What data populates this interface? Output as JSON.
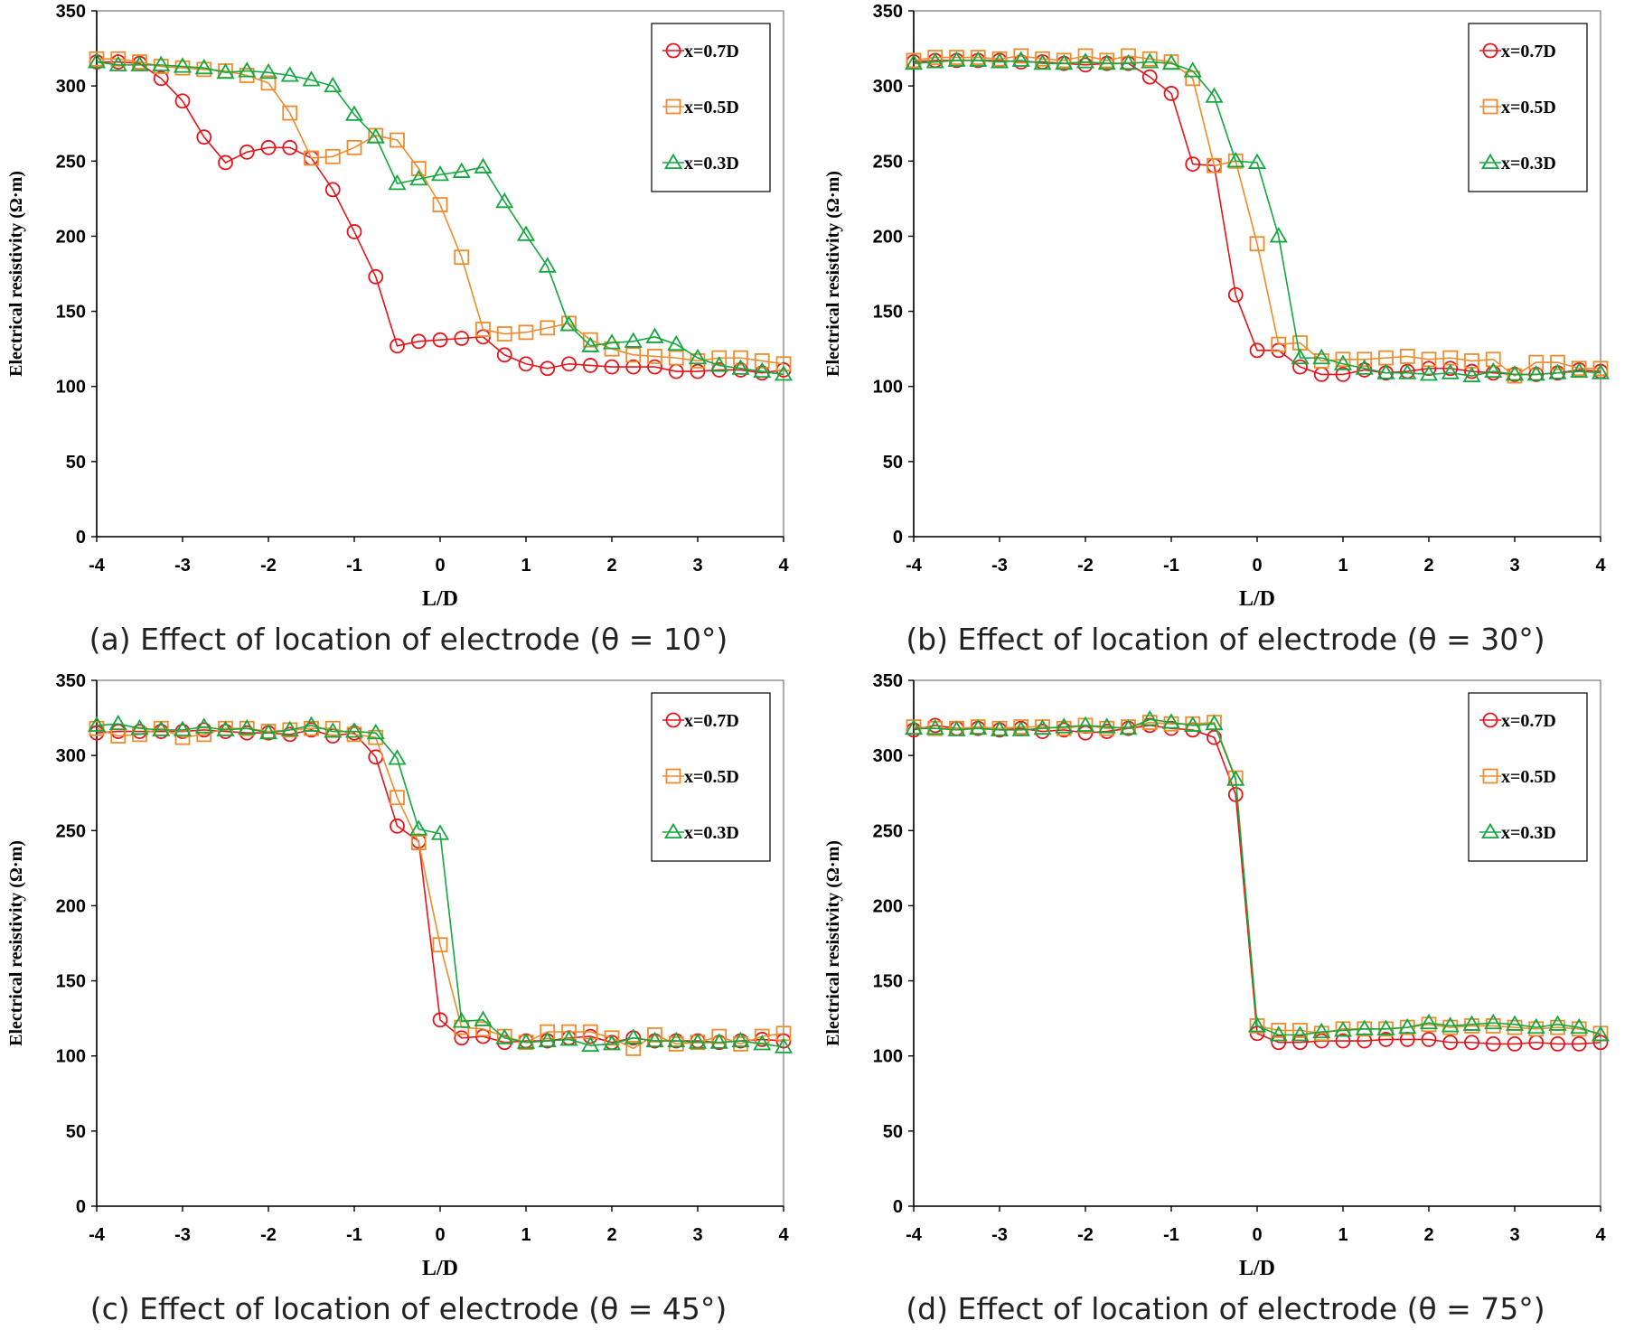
{
  "chart_data": [
    {
      "type": "line",
      "caption": "(a) Effect of location of electrode (θ = 10°)",
      "xlabel": "L/D",
      "ylabel": "Electrical resistivity (Ω·m)",
      "xlim": [
        -4,
        4
      ],
      "ylim": [
        0,
        350
      ],
      "xticks": [
        "-4",
        "-3",
        "-2",
        "-1",
        "0",
        "1",
        "2",
        "3",
        "4"
      ],
      "yticks": [
        "0",
        "50",
        "100",
        "150",
        "200",
        "250",
        "300",
        "350"
      ],
      "grid": false,
      "legend_position": "top-right",
      "x": [
        -4,
        -3.75,
        -3.5,
        -3.25,
        -3,
        -2.75,
        -2.5,
        -2.25,
        -2,
        -1.75,
        -1.5,
        -1.25,
        -1,
        -0.75,
        -0.5,
        -0.25,
        0,
        0.25,
        0.5,
        0.75,
        1,
        1.25,
        1.5,
        1.75,
        2,
        2.25,
        2.5,
        2.75,
        3,
        3.25,
        3.5,
        3.75,
        4
      ],
      "series": [
        {
          "name": "x=0.7D",
          "color": "#e8141b",
          "marker": "circle",
          "values": [
            316,
            316,
            315,
            305,
            290,
            266,
            249,
            256,
            259,
            259,
            252,
            231,
            203,
            173,
            127,
            130,
            131,
            132,
            133,
            121,
            115,
            112,
            115,
            114,
            113,
            113,
            113,
            110,
            110,
            111,
            111,
            109,
            111
          ]
        },
        {
          "name": "x=0.5D",
          "color": "#ee8c2d",
          "marker": "square",
          "values": [
            318,
            318,
            316,
            313,
            312,
            311,
            310,
            307,
            302,
            282,
            252,
            253,
            259,
            267,
            264,
            245,
            221,
            186,
            138,
            135,
            136,
            139,
            142,
            131,
            125,
            121,
            120,
            119,
            117,
            119,
            119,
            117,
            115
          ]
        },
        {
          "name": "x=0.3D",
          "color": "#13a83e",
          "marker": "triangle",
          "values": [
            316,
            314,
            314,
            314,
            313,
            312,
            309,
            310,
            309,
            307,
            304,
            300,
            281,
            266,
            235,
            238,
            241,
            243,
            246,
            223,
            201,
            180,
            141,
            127,
            129,
            130,
            133,
            128,
            119,
            114,
            112,
            110,
            108
          ]
        }
      ]
    },
    {
      "type": "line",
      "caption": "(b) Effect of location of electrode (θ = 30°)",
      "xlabel": "L/D",
      "ylabel": "Electrical resistivity (Ω·m)",
      "xlim": [
        -4,
        4
      ],
      "ylim": [
        0,
        350
      ],
      "xticks": [
        "-4",
        "-3",
        "-2",
        "-1",
        "0",
        "1",
        "2",
        "3",
        "4"
      ],
      "yticks": [
        "0",
        "50",
        "100",
        "150",
        "200",
        "250",
        "300",
        "350"
      ],
      "grid": false,
      "legend_position": "top-right",
      "x": [
        -4,
        -3.75,
        -3.5,
        -3.25,
        -3,
        -2.75,
        -2.5,
        -2.25,
        -2,
        -1.75,
        -1.5,
        -1.25,
        -1,
        -0.75,
        -0.5,
        -0.25,
        0,
        0.25,
        0.5,
        0.75,
        1,
        1.25,
        1.5,
        1.75,
        2,
        2.25,
        2.5,
        2.75,
        3,
        3.25,
        3.5,
        3.75,
        4
      ],
      "series": [
        {
          "name": "x=0.7D",
          "color": "#e8141b",
          "marker": "circle",
          "values": [
            316,
            317,
            317,
            317,
            317,
            316,
            316,
            315,
            314,
            315,
            315,
            306,
            295,
            248,
            247,
            161,
            124,
            124,
            113,
            108,
            108,
            111,
            109,
            110,
            112,
            112,
            110,
            109,
            108,
            108,
            109,
            111,
            110
          ]
        },
        {
          "name": "x=0.5D",
          "color": "#ee8c2d",
          "marker": "square",
          "values": [
            317,
            319,
            319,
            319,
            318,
            320,
            318,
            317,
            320,
            317,
            320,
            318,
            316,
            305,
            247,
            250,
            195,
            128,
            129,
            117,
            118,
            118,
            119,
            120,
            118,
            119,
            117,
            118,
            107,
            116,
            116,
            112,
            112
          ]
        },
        {
          "name": "x=0.3D",
          "color": "#13a83e",
          "marker": "triangle",
          "values": [
            315,
            316,
            317,
            317,
            316,
            317,
            315,
            315,
            316,
            315,
            315,
            316,
            315,
            310,
            293,
            250,
            249,
            200,
            119,
            119,
            115,
            112,
            109,
            109,
            108,
            109,
            107,
            110,
            108,
            108,
            109,
            110,
            109
          ]
        }
      ]
    },
    {
      "type": "line",
      "caption": "(c) Effect of location of electrode (θ = 45°)",
      "xlabel": "L/D",
      "ylabel": "Electrical resistivity (Ω·m)",
      "xlim": [
        -4,
        4
      ],
      "ylim": [
        0,
        350
      ],
      "xticks": [
        "-4",
        "-3",
        "-2",
        "-1",
        "0",
        "1",
        "2",
        "3",
        "4"
      ],
      "yticks": [
        "0",
        "50",
        "100",
        "150",
        "200",
        "250",
        "300",
        "350"
      ],
      "grid": false,
      "legend_position": "top-right",
      "x": [
        -4,
        -3.75,
        -3.5,
        -3.25,
        -3,
        -2.75,
        -2.5,
        -2.25,
        -2,
        -1.75,
        -1.5,
        -1.25,
        -1,
        -0.75,
        -0.5,
        -0.25,
        0,
        0.25,
        0.5,
        0.75,
        1,
        1.25,
        1.5,
        1.75,
        2,
        2.25,
        2.5,
        2.75,
        3,
        3.25,
        3.5,
        3.75,
        4
      ],
      "series": [
        {
          "name": "x=0.7D",
          "color": "#e8141b",
          "marker": "circle",
          "values": [
            315,
            316,
            316,
            316,
            316,
            317,
            316,
            315,
            315,
            314,
            317,
            313,
            315,
            299,
            253,
            243,
            124,
            112,
            113,
            109,
            110,
            110,
            112,
            113,
            109,
            112,
            110,
            110,
            110,
            109,
            110,
            111,
            110
          ]
        },
        {
          "name": "x=0.5D",
          "color": "#ee8c2d",
          "marker": "square",
          "values": [
            318,
            313,
            314,
            318,
            312,
            314,
            318,
            318,
            316,
            317,
            318,
            318,
            314,
            312,
            272,
            242,
            174,
            119,
            118,
            113,
            109,
            116,
            116,
            116,
            112,
            105,
            114,
            108,
            109,
            113,
            108,
            113,
            115
          ]
        },
        {
          "name": "x=0.3D",
          "color": "#13a83e",
          "marker": "triangle",
          "values": [
            320,
            321,
            318,
            317,
            317,
            319,
            317,
            318,
            315,
            317,
            320,
            316,
            316,
            315,
            298,
            251,
            248,
            123,
            124,
            112,
            109,
            110,
            111,
            107,
            108,
            112,
            110,
            110,
            109,
            109,
            110,
            108,
            106
          ]
        }
      ]
    },
    {
      "type": "line",
      "caption": "(d) Effect of location of electrode (θ = 75°)",
      "xlabel": "L/D",
      "ylabel": "Electrical resistivity (Ω·m)",
      "xlim": [
        -4,
        4
      ],
      "ylim": [
        0,
        350
      ],
      "xticks": [
        "-4",
        "-3",
        "-2",
        "-1",
        "0",
        "1",
        "2",
        "3",
        "4"
      ],
      "yticks": [
        "0",
        "50",
        "100",
        "150",
        "200",
        "250",
        "300",
        "350"
      ],
      "grid": false,
      "legend_position": "top-right",
      "x": [
        -4,
        -3.75,
        -3.5,
        -3.25,
        -3,
        -2.75,
        -2.5,
        -2.25,
        -2,
        -1.75,
        -1.5,
        -1.25,
        -1,
        -0.75,
        -0.5,
        -0.25,
        0,
        0.25,
        0.5,
        0.75,
        1,
        1.25,
        1.5,
        1.75,
        2,
        2.25,
        2.5,
        2.75,
        3,
        3.25,
        3.5,
        3.75,
        4
      ],
      "series": [
        {
          "name": "x=0.7D",
          "color": "#e8141b",
          "marker": "circle",
          "values": [
            317,
            320,
            318,
            318,
            317,
            318,
            316,
            317,
            315,
            316,
            318,
            320,
            318,
            317,
            312,
            274,
            115,
            109,
            109,
            110,
            110,
            110,
            111,
            111,
            111,
            109,
            109,
            108,
            108,
            109,
            108,
            108,
            109
          ]
        },
        {
          "name": "x=0.5D",
          "color": "#ee8c2d",
          "marker": "square",
          "values": [
            319,
            318,
            318,
            319,
            318,
            319,
            319,
            318,
            320,
            318,
            319,
            322,
            321,
            321,
            322,
            285,
            120,
            117,
            117,
            115,
            118,
            118,
            118,
            119,
            121,
            119,
            120,
            120,
            119,
            118,
            119,
            118,
            115
          ]
        },
        {
          "name": "x=0.3D",
          "color": "#13a83e",
          "marker": "triangle",
          "values": [
            318,
            318,
            317,
            318,
            317,
            317,
            318,
            319,
            320,
            319,
            318,
            324,
            322,
            320,
            321,
            284,
            120,
            114,
            114,
            116,
            117,
            118,
            118,
            119,
            122,
            120,
            121,
            122,
            121,
            119,
            121,
            119,
            114
          ]
        }
      ]
    }
  ]
}
